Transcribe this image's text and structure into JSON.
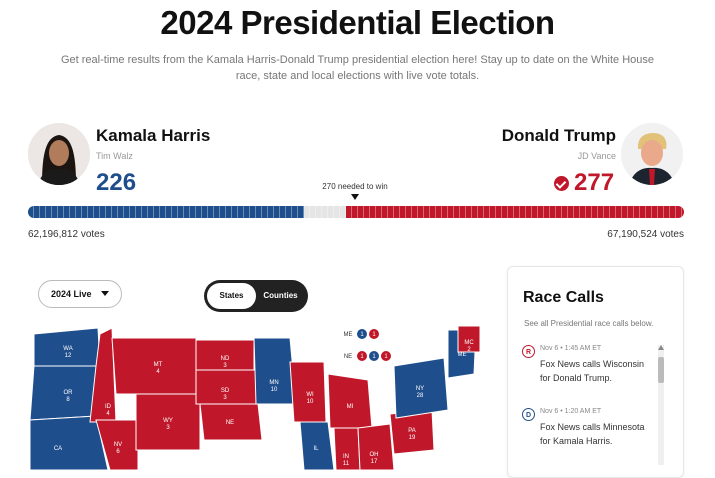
{
  "header": {
    "title": "2024 Presidential Election",
    "subtitle": "Get real-time results from the Kamala Harris-Donald Trump presidential election here! Stay up to date on the White House race, state and local elections with live vote totals."
  },
  "candidates": {
    "left": {
      "name": "Kamala Harris",
      "running_mate": "Tim Walz",
      "electoral_votes": "226",
      "popular_votes": "62,196,812 votes",
      "color": "#1f4e8c"
    },
    "right": {
      "name": "Donald Trump",
      "running_mate": "JD Vance",
      "electoral_votes": "277",
      "popular_votes": "67,190,524 votes",
      "color": "#c0182a",
      "winner_icon": "check-circle-icon"
    }
  },
  "needed_label": "270 needed to win",
  "progress": {
    "left_ev": 226,
    "right_ev": 277,
    "total_ev": 538
  },
  "controls": {
    "dropdown_value": "2024 Live",
    "toggle": {
      "states_label": "States",
      "counties_label": "Counties",
      "selected": "States"
    }
  },
  "map": {
    "states": [
      {
        "abbr": "WA",
        "ev": "12",
        "party": "D"
      },
      {
        "abbr": "OR",
        "ev": "8",
        "party": "D"
      },
      {
        "abbr": "CA",
        "ev": "",
        "party": "D"
      },
      {
        "abbr": "ID",
        "ev": "4",
        "party": "R"
      },
      {
        "abbr": "NV",
        "ev": "6",
        "party": "R"
      },
      {
        "abbr": "MT",
        "ev": "4",
        "party": "R"
      },
      {
        "abbr": "WY",
        "ev": "3",
        "party": "R"
      },
      {
        "abbr": "ND",
        "ev": "3",
        "party": "R"
      },
      {
        "abbr": "SD",
        "ev": "3",
        "party": "R"
      },
      {
        "abbr": "NE",
        "ev": "",
        "party": "R"
      },
      {
        "abbr": "MN",
        "ev": "10",
        "party": "D"
      },
      {
        "abbr": "WI",
        "ev": "10",
        "party": "R"
      },
      {
        "abbr": "MI",
        "ev": "",
        "party": "R"
      },
      {
        "abbr": "IL",
        "ev": "",
        "party": "D"
      },
      {
        "abbr": "IN",
        "ev": "11",
        "party": "R"
      },
      {
        "abbr": "OH",
        "ev": "17",
        "party": "R"
      },
      {
        "abbr": "PA",
        "ev": "19",
        "party": "R"
      },
      {
        "abbr": "NY",
        "ev": "28",
        "party": "D"
      },
      {
        "abbr": "ME",
        "ev": "",
        "party": "D"
      },
      {
        "abbr": "MC",
        "ev": "2",
        "party": "R"
      }
    ],
    "districts": {
      "ME": {
        "label": "ME",
        "values": [
          "1",
          "1"
        ],
        "party": [
          "D",
          "R"
        ]
      },
      "NE": {
        "label": "NE",
        "values": [
          "1",
          "1",
          "1"
        ],
        "party": [
          "R",
          "D",
          "R"
        ]
      }
    }
  },
  "race_calls": {
    "title": "Race Calls",
    "description": "See all Presidential race calls below.",
    "items": [
      {
        "badge": "R",
        "time": "Nov 6 • 1:45 AM ET",
        "text": "Fox News calls Wisconsin for Donald Trump.",
        "color": "#c0182a"
      },
      {
        "badge": "D",
        "time": "Nov 6 • 1:20 AM ET",
        "text": "Fox News calls Minnesota for Kamala Harris.",
        "color": "#1f4e8c"
      }
    ]
  }
}
